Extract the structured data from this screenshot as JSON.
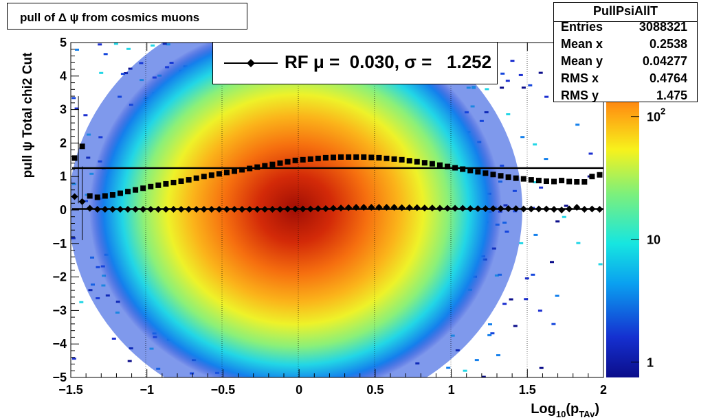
{
  "chart_data": {
    "type": "heatmap",
    "title": "pull of Δ ψ from cosmics muons",
    "xlabel": "Log",
    "xlabel_sub1": "10",
    "xlabel_mid": "(p",
    "xlabel_sub2": "TAv",
    "xlabel_end": ")",
    "ylabel": "pull ψ   Total chi2 Cut",
    "xlim": [
      -1.5,
      2
    ],
    "ylim": [
      -5,
      5
    ],
    "x_ticks": [
      "−1.5",
      "−1",
      "−0.5",
      "0",
      "0.5",
      "1",
      "1.5",
      "2"
    ],
    "x_tick_values": [
      -1.5,
      -1,
      -0.5,
      0,
      0.5,
      1,
      1.5,
      2
    ],
    "y_ticks": [
      "−5",
      "−4",
      "−3",
      "−2",
      "−1",
      "0",
      "1",
      "2",
      "3",
      "4",
      "5"
    ],
    "y_tick_values": [
      -5,
      -4,
      -3,
      -2,
      -1,
      0,
      1,
      2,
      3,
      4,
      5
    ],
    "colorbar": {
      "scale": "log",
      "labels": [
        {
          "text": "1",
          "value": 1
        },
        {
          "text": "10",
          "value": 10
        },
        {
          "text": "10",
          "sup": "2",
          "value": 100
        }
      ]
    },
    "stats": {
      "name": "PullPsiAllT",
      "rows": [
        {
          "key": "Entries",
          "value": "3088321"
        },
        {
          "key": "Mean x",
          "value": "0.2538"
        },
        {
          "key": "Mean y",
          "value": "0.04277"
        },
        {
          "key": "RMS x",
          "value": "0.4764"
        },
        {
          "key": "RMS y",
          "value": "1.475"
        }
      ]
    },
    "legend": {
      "text": "RF μ =  0.030, σ =   1.252"
    },
    "fit_lines": [
      {
        "name": "mean fit",
        "y": 0.03
      },
      {
        "name": "sigma fit",
        "y": 1.252
      }
    ],
    "series": [
      {
        "name": "mean",
        "marker": "diamond",
        "x": [
          -1.475,
          -1.425,
          -1.375,
          -1.325,
          -1.275,
          -1.225,
          -1.175,
          -1.125,
          -1.075,
          -1.025,
          -0.975,
          -0.925,
          -0.875,
          -0.825,
          -0.775,
          -0.725,
          -0.675,
          -0.625,
          -0.575,
          -0.525,
          -0.475,
          -0.425,
          -0.375,
          -0.325,
          -0.275,
          -0.225,
          -0.175,
          -0.125,
          -0.075,
          -0.025,
          0.025,
          0.075,
          0.125,
          0.175,
          0.225,
          0.275,
          0.325,
          0.375,
          0.425,
          0.475,
          0.525,
          0.575,
          0.625,
          0.675,
          0.725,
          0.775,
          0.825,
          0.875,
          0.925,
          0.975,
          1.025,
          1.075,
          1.125,
          1.175,
          1.225,
          1.275,
          1.325,
          1.375,
          1.425,
          1.475,
          1.525,
          1.575,
          1.625,
          1.675,
          1.725,
          1.775,
          1.825,
          1.875,
          1.925,
          1.975
        ],
        "y": [
          0.4,
          0.25,
          0.05,
          0.02,
          0.02,
          0.02,
          0.02,
          0.02,
          0.02,
          0.02,
          0.02,
          0.02,
          0.02,
          0.02,
          0.02,
          0.02,
          0.02,
          0.02,
          0.02,
          0.02,
          0.02,
          0.02,
          0.02,
          0.02,
          0.02,
          0.02,
          0.02,
          0.02,
          0.03,
          0.03,
          0.03,
          0.03,
          0.04,
          0.04,
          0.05,
          0.06,
          0.07,
          0.08,
          0.08,
          0.08,
          0.08,
          0.08,
          0.08,
          0.07,
          0.07,
          0.07,
          0.06,
          0.06,
          0.05,
          0.05,
          0.05,
          0.05,
          0.04,
          0.04,
          0.04,
          0.04,
          0.04,
          0.04,
          0.04,
          0.03,
          0.03,
          0.03,
          0.03,
          0.02,
          0.0,
          0.03,
          0.08,
          0.02,
          0.03,
          0.02
        ]
      },
      {
        "name": "sigma",
        "marker": "square",
        "x": [
          -1.475,
          -1.425,
          -1.375,
          -1.325,
          -1.275,
          -1.225,
          -1.175,
          -1.125,
          -1.075,
          -1.025,
          -0.975,
          -0.925,
          -0.875,
          -0.825,
          -0.775,
          -0.725,
          -0.675,
          -0.625,
          -0.575,
          -0.525,
          -0.475,
          -0.425,
          -0.375,
          -0.325,
          -0.275,
          -0.225,
          -0.175,
          -0.125,
          -0.075,
          -0.025,
          0.025,
          0.075,
          0.125,
          0.175,
          0.225,
          0.275,
          0.325,
          0.375,
          0.425,
          0.475,
          0.525,
          0.575,
          0.625,
          0.675,
          0.725,
          0.775,
          0.825,
          0.875,
          0.925,
          0.975,
          1.025,
          1.075,
          1.125,
          1.175,
          1.225,
          1.275,
          1.325,
          1.375,
          1.425,
          1.475,
          1.525,
          1.575,
          1.625,
          1.675,
          1.725,
          1.775,
          1.825,
          1.875,
          1.925,
          1.975
        ],
        "y": [
          1.55,
          1.9,
          0.42,
          0.38,
          0.42,
          0.45,
          0.5,
          0.55,
          0.6,
          0.65,
          0.7,
          0.74,
          0.78,
          0.82,
          0.86,
          0.9,
          0.95,
          1.0,
          1.04,
          1.08,
          1.12,
          1.16,
          1.2,
          1.24,
          1.28,
          1.32,
          1.36,
          1.4,
          1.44,
          1.48,
          1.5,
          1.52,
          1.54,
          1.56,
          1.57,
          1.58,
          1.58,
          1.58,
          1.58,
          1.57,
          1.56,
          1.54,
          1.52,
          1.5,
          1.47,
          1.44,
          1.41,
          1.38,
          1.34,
          1.3,
          1.26,
          1.22,
          1.18,
          1.14,
          1.1,
          1.06,
          1.02,
          0.98,
          0.95,
          0.93,
          0.9,
          0.88,
          0.86,
          0.85,
          0.88,
          0.85,
          0.84,
          0.84,
          1.0,
          1.05
        ]
      }
    ]
  }
}
